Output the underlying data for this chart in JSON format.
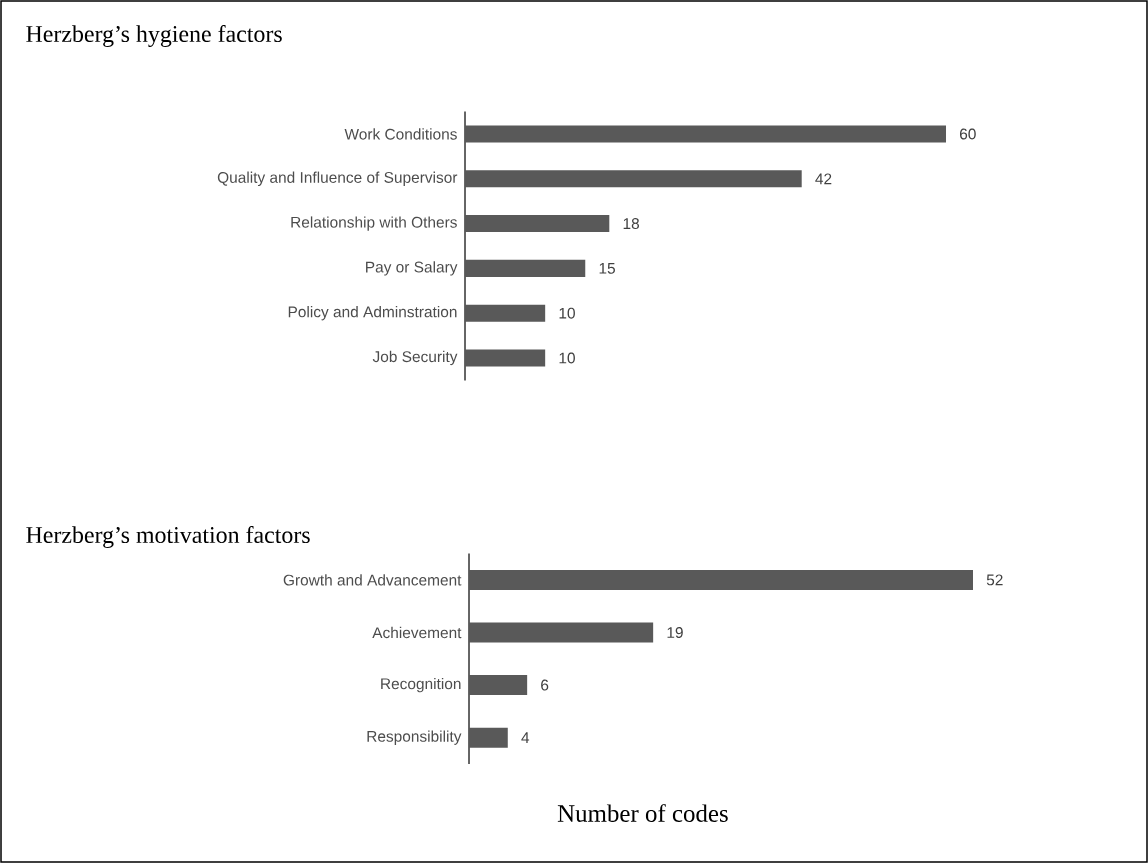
{
  "chart_data": [
    {
      "type": "bar",
      "orientation": "horizontal",
      "title": "Herzberg’s hygiene factors",
      "categories": [
        "Work Conditions",
        "Quality and Influence of Supervisor",
        "Relationship with Others",
        "Pay or Salary",
        "Policy and Adminstration",
        "Job Security"
      ],
      "values": [
        60,
        42,
        18,
        15,
        10,
        10
      ],
      "color": "#595959",
      "data_labels": true
    },
    {
      "type": "bar",
      "orientation": "horizontal",
      "title": "Herzberg’s motivation factors",
      "xlabel": "Number of codes",
      "categories": [
        "Growth and Advancement",
        "Achievement",
        "Recognition",
        "Responsibility"
      ],
      "values": [
        52,
        19,
        6,
        4
      ],
      "color": "#595959",
      "data_labels": true
    }
  ]
}
